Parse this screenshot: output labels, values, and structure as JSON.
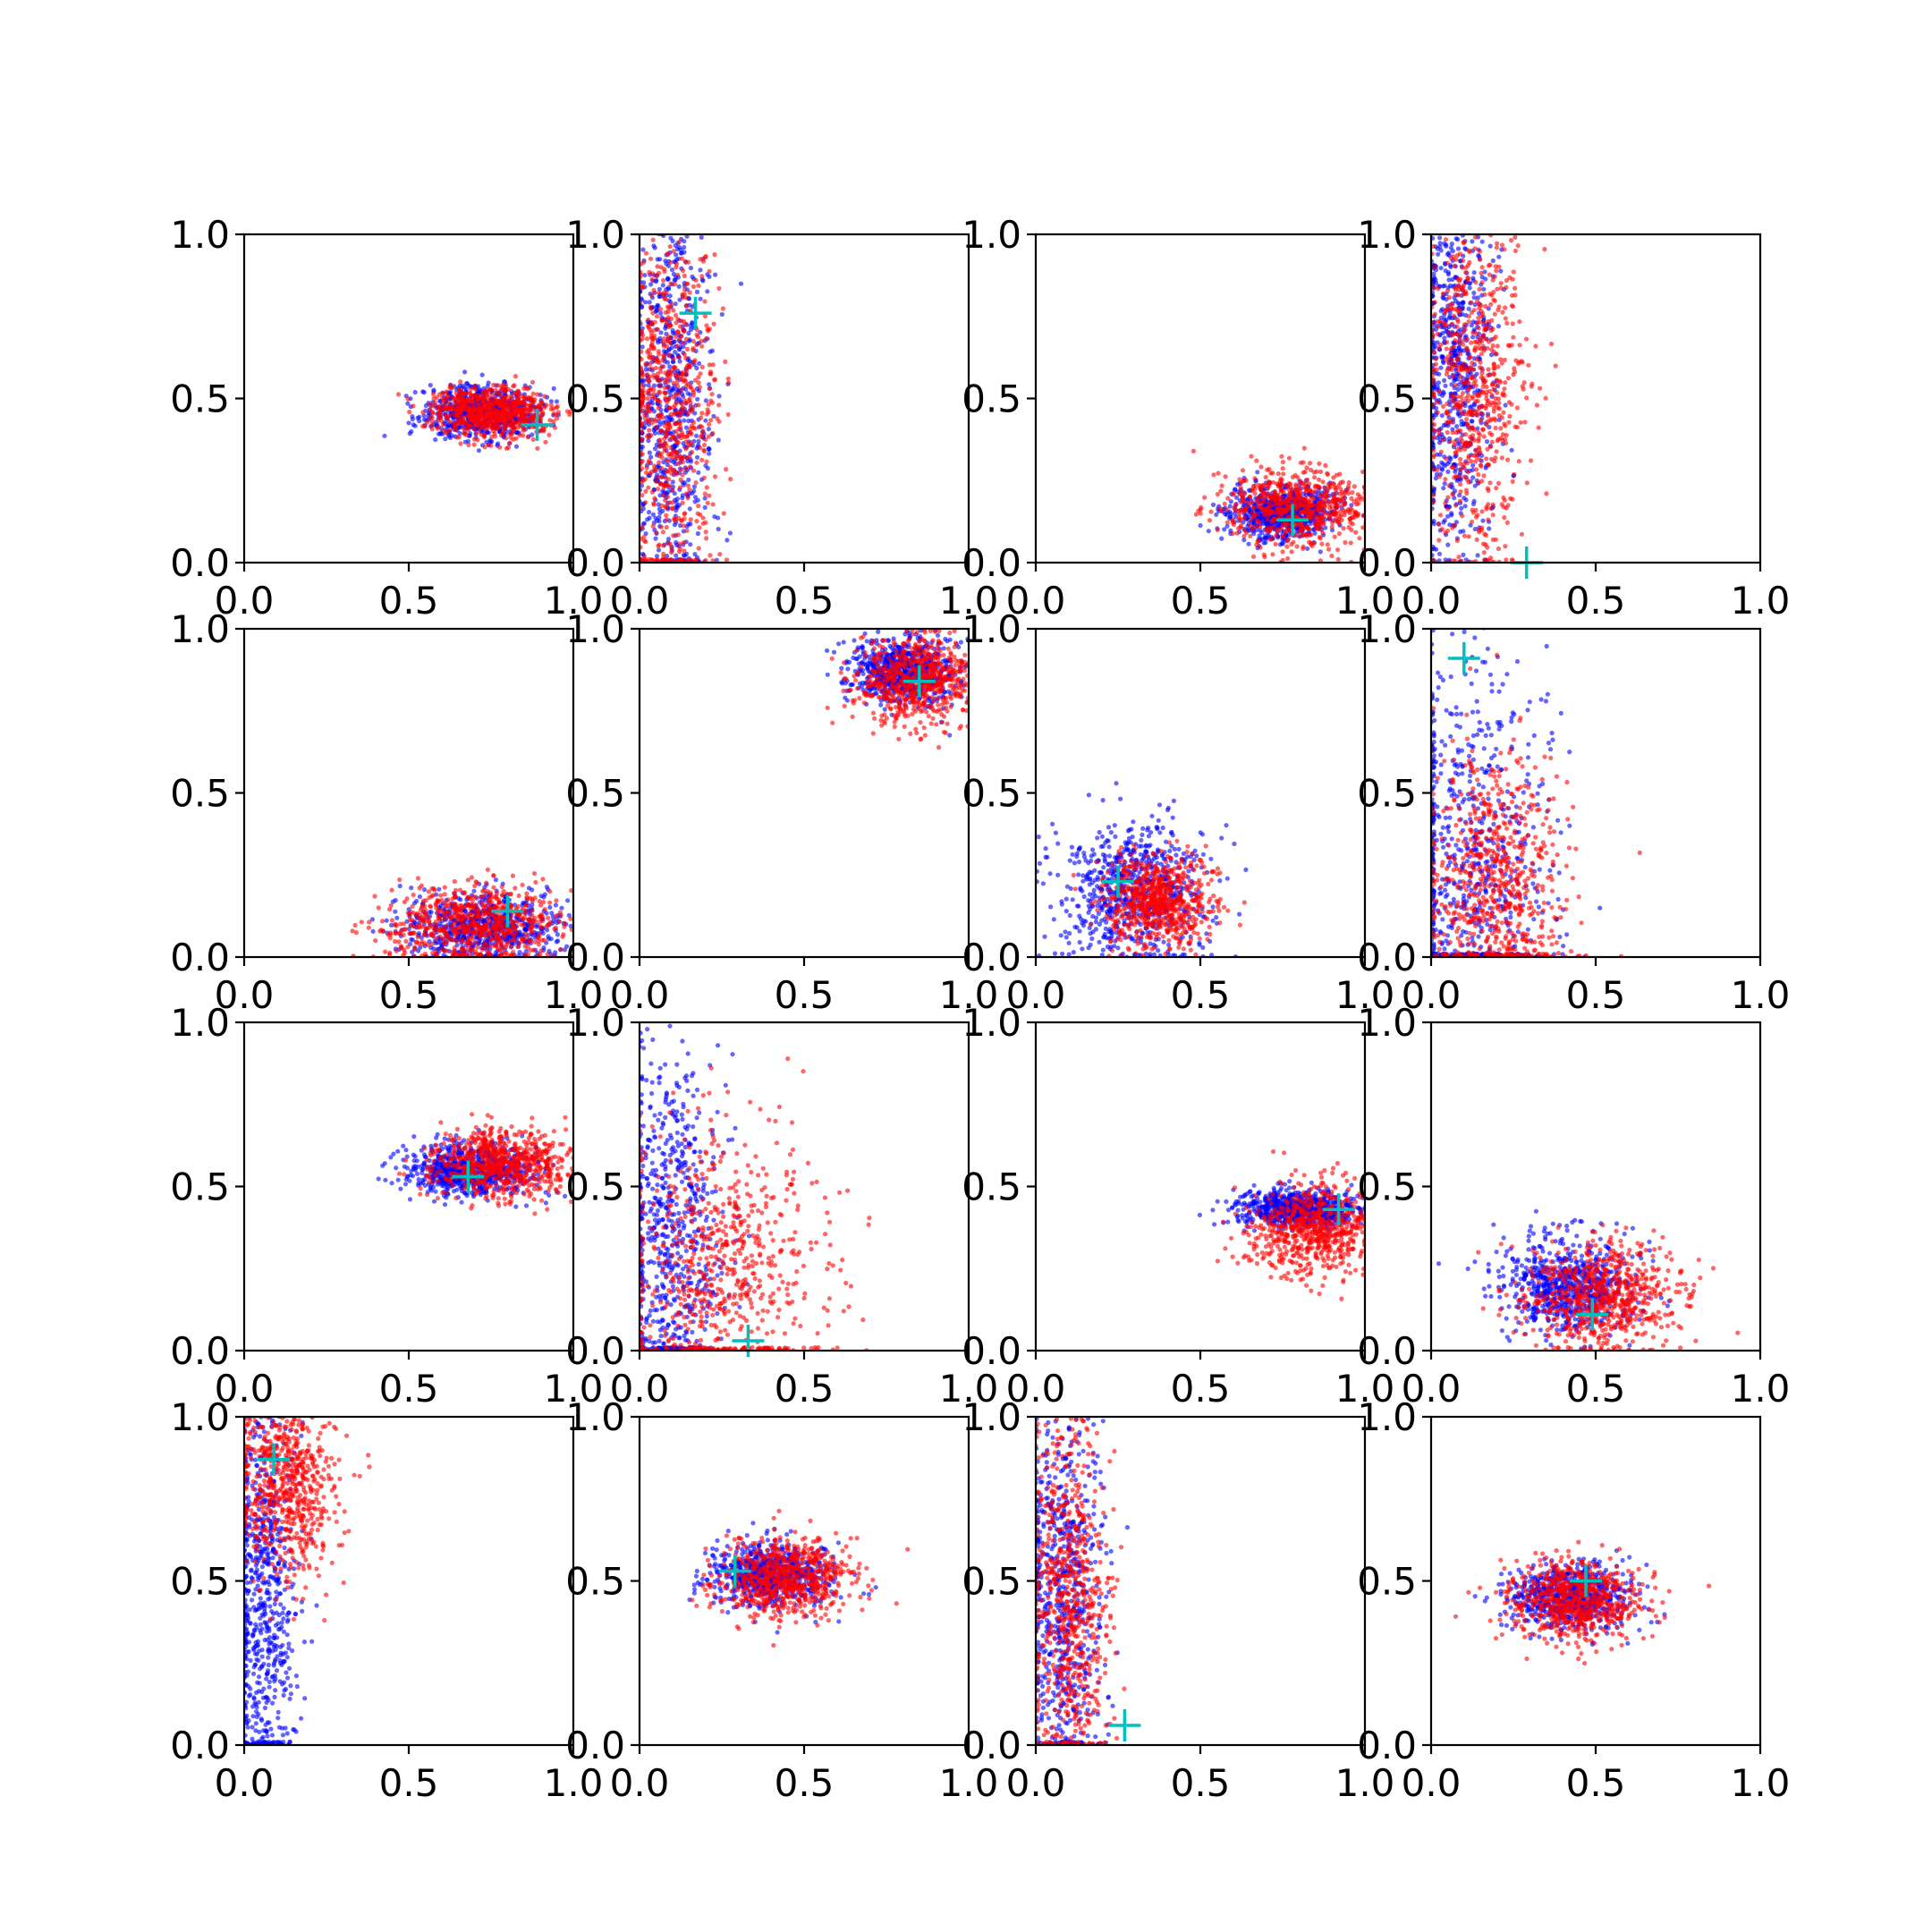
{
  "figure": {
    "colors": {
      "series_a": "#0000ff",
      "series_b": "#ff0000",
      "marker": "#00bfbf",
      "axes": "#000000",
      "background": "#ffffff"
    }
  },
  "chart_data": [
    {
      "type": "scatter",
      "xlim": [
        0,
        1
      ],
      "ylim": [
        0,
        1
      ],
      "xticks": [
        "0.0",
        "0.5",
        "1.0"
      ],
      "yticks": [
        "0.0",
        "0.5",
        "1.0"
      ],
      "grid": false,
      "series": [
        {
          "color": "#0000ff",
          "cluster": {
            "cx": 0.72,
            "cy": 0.46,
            "sx": 0.09,
            "sy": 0.04
          }
        },
        {
          "color": "#ff0000",
          "cluster": {
            "cx": 0.75,
            "cy": 0.46,
            "sx": 0.09,
            "sy": 0.04
          }
        }
      ],
      "marker": {
        "symbol": "+",
        "x": 0.89,
        "y": 0.42
      }
    },
    {
      "type": "scatter",
      "xlim": [
        0,
        1
      ],
      "ylim": [
        0,
        1
      ],
      "xticks": [
        "0.0",
        "0.5",
        "1.0"
      ],
      "yticks": [
        "0.0",
        "0.5",
        "1.0"
      ],
      "grid": false,
      "series": [
        {
          "color": "#0000ff",
          "cluster": {
            "cx": 0.1,
            "cy": 0.5,
            "sx": 0.06,
            "sy": 0.3
          }
        },
        {
          "color": "#ff0000",
          "cluster": {
            "cx": 0.1,
            "cy": 0.45,
            "sx": 0.07,
            "sy": 0.3
          }
        }
      ],
      "marker": {
        "symbol": "+",
        "x": 0.17,
        "y": 0.76
      }
    },
    {
      "type": "scatter",
      "xlim": [
        0,
        1
      ],
      "ylim": [
        0,
        1
      ],
      "xticks": [
        "0.0",
        "0.5",
        "1.0"
      ],
      "yticks": [
        "0.0",
        "0.5",
        "1.0"
      ],
      "grid": false,
      "series": [
        {
          "color": "#0000ff",
          "cluster": {
            "cx": 0.75,
            "cy": 0.15,
            "sx": 0.08,
            "sy": 0.04
          }
        },
        {
          "color": "#ff0000",
          "cluster": {
            "cx": 0.8,
            "cy": 0.17,
            "sx": 0.12,
            "sy": 0.06
          }
        }
      ],
      "marker": {
        "symbol": "+",
        "x": 0.78,
        "y": 0.13
      }
    },
    {
      "type": "scatter",
      "xlim": [
        0,
        1
      ],
      "ylim": [
        0,
        1
      ],
      "xticks": [
        "0.0",
        "0.5",
        "1.0"
      ],
      "yticks": [
        "0.0",
        "0.5",
        "1.0"
      ],
      "grid": false,
      "series": [
        {
          "color": "#0000ff",
          "cluster": {
            "cx": 0.07,
            "cy": 0.6,
            "sx": 0.06,
            "sy": 0.28
          }
        },
        {
          "color": "#ff0000",
          "cluster": {
            "cx": 0.13,
            "cy": 0.55,
            "sx": 0.08,
            "sy": 0.28
          }
        }
      ],
      "marker": {
        "symbol": "+",
        "x": 0.29,
        "y": 0.0
      }
    },
    {
      "type": "scatter",
      "xlim": [
        0,
        1
      ],
      "ylim": [
        0,
        1
      ],
      "xticks": [
        "0.0",
        "0.5",
        "1.0"
      ],
      "yticks": [
        "0.0",
        "0.5",
        "1.0"
      ],
      "grid": false,
      "series": [
        {
          "color": "#0000ff",
          "cluster": {
            "cx": 0.72,
            "cy": 0.09,
            "sx": 0.12,
            "sy": 0.05
          }
        },
        {
          "color": "#ff0000",
          "cluster": {
            "cx": 0.7,
            "cy": 0.1,
            "sx": 0.14,
            "sy": 0.06
          }
        }
      ],
      "marker": {
        "symbol": "+",
        "x": 0.8,
        "y": 0.14
      }
    },
    {
      "type": "scatter",
      "xlim": [
        0,
        1
      ],
      "ylim": [
        0,
        1
      ],
      "xticks": [
        "0.0",
        "0.5",
        "1.0"
      ],
      "yticks": [
        "0.0",
        "0.5",
        "1.0"
      ],
      "grid": false,
      "series": [
        {
          "color": "#0000ff",
          "cluster": {
            "cx": 0.8,
            "cy": 0.87,
            "sx": 0.08,
            "sy": 0.05
          }
        },
        {
          "color": "#ff0000",
          "cluster": {
            "cx": 0.85,
            "cy": 0.85,
            "sx": 0.1,
            "sy": 0.07
          }
        }
      ],
      "marker": {
        "symbol": "+",
        "x": 0.85,
        "y": 0.84
      }
    },
    {
      "type": "scatter",
      "xlim": [
        0,
        1
      ],
      "ylim": [
        0,
        1
      ],
      "xticks": [
        "0.0",
        "0.5",
        "1.0"
      ],
      "yticks": [
        "0.0",
        "0.5",
        "1.0"
      ],
      "grid": false,
      "series": [
        {
          "color": "#0000ff",
          "cluster": {
            "cx": 0.3,
            "cy": 0.2,
            "sx": 0.11,
            "sy": 0.11
          }
        },
        {
          "color": "#ff0000",
          "cluster": {
            "cx": 0.37,
            "cy": 0.17,
            "sx": 0.08,
            "sy": 0.07
          }
        }
      ],
      "marker": {
        "symbol": "+",
        "x": 0.25,
        "y": 0.23
      }
    },
    {
      "type": "scatter",
      "xlim": [
        0,
        1
      ],
      "ylim": [
        0,
        1
      ],
      "xticks": [
        "0.0",
        "0.5",
        "1.0"
      ],
      "yticks": [
        "0.0",
        "0.5",
        "1.0"
      ],
      "grid": false,
      "series": [
        {
          "color": "#0000ff",
          "cluster": {
            "cx": 0.12,
            "cy": 0.3,
            "sx": 0.12,
            "sy": 0.3
          }
        },
        {
          "color": "#ff0000",
          "cluster": {
            "cx": 0.2,
            "cy": 0.22,
            "sx": 0.1,
            "sy": 0.2
          }
        }
      ],
      "marker": {
        "symbol": "+",
        "x": 0.1,
        "y": 0.91
      }
    },
    {
      "type": "scatter",
      "xlim": [
        0,
        1
      ],
      "ylim": [
        0,
        1
      ],
      "xticks": [
        "0.0",
        "0.5",
        "1.0"
      ],
      "yticks": [
        "0.0",
        "0.5",
        "1.0"
      ],
      "grid": false,
      "series": [
        {
          "color": "#0000ff",
          "cluster": {
            "cx": 0.68,
            "cy": 0.55,
            "sx": 0.1,
            "sy": 0.04
          }
        },
        {
          "color": "#ff0000",
          "cluster": {
            "cx": 0.78,
            "cy": 0.57,
            "sx": 0.1,
            "sy": 0.05
          }
        }
      ],
      "marker": {
        "symbol": "+",
        "x": 0.68,
        "y": 0.53
      }
    },
    {
      "type": "scatter",
      "xlim": [
        0,
        1
      ],
      "ylim": [
        0,
        1
      ],
      "xticks": [
        "0.0",
        "0.5",
        "1.0"
      ],
      "yticks": [
        "0.0",
        "0.5",
        "1.0"
      ],
      "grid": false,
      "series": [
        {
          "color": "#0000ff",
          "cluster": {
            "cx": 0.1,
            "cy": 0.3,
            "sx": 0.08,
            "sy": 0.3
          }
        },
        {
          "color": "#ff0000",
          "cluster": {
            "cx": 0.25,
            "cy": 0.25,
            "sx": 0.15,
            "sy": 0.22
          }
        }
      ],
      "marker": {
        "symbol": "+",
        "x": 0.33,
        "y": 0.03
      }
    },
    {
      "type": "scatter",
      "xlim": [
        0,
        1
      ],
      "ylim": [
        0,
        1
      ],
      "xticks": [
        "0.0",
        "0.5",
        "1.0"
      ],
      "yticks": [
        "0.0",
        "0.5",
        "1.0"
      ],
      "grid": false,
      "series": [
        {
          "color": "#0000ff",
          "cluster": {
            "cx": 0.8,
            "cy": 0.43,
            "sx": 0.1,
            "sy": 0.03
          }
        },
        {
          "color": "#ff0000",
          "cluster": {
            "cx": 0.85,
            "cy": 0.37,
            "sx": 0.1,
            "sy": 0.07
          }
        }
      ],
      "marker": {
        "symbol": "+",
        "x": 0.92,
        "y": 0.43
      }
    },
    {
      "type": "scatter",
      "xlim": [
        0,
        1
      ],
      "ylim": [
        0,
        1
      ],
      "xticks": [
        "0.0",
        "0.5",
        "1.0"
      ],
      "yticks": [
        "0.0",
        "0.5",
        "1.0"
      ],
      "grid": false,
      "series": [
        {
          "color": "#0000ff",
          "cluster": {
            "cx": 0.42,
            "cy": 0.2,
            "sx": 0.1,
            "sy": 0.07
          }
        },
        {
          "color": "#ff0000",
          "cluster": {
            "cx": 0.52,
            "cy": 0.17,
            "sx": 0.12,
            "sy": 0.08
          }
        }
      ],
      "marker": {
        "symbol": "+",
        "x": 0.49,
        "y": 0.11
      }
    },
    {
      "type": "scatter",
      "xlim": [
        0,
        1
      ],
      "ylim": [
        0,
        1
      ],
      "xticks": [
        "0.0",
        "0.5",
        "1.0"
      ],
      "yticks": [
        "0.0",
        "0.5",
        "1.0"
      ],
      "grid": false,
      "series": [
        {
          "color": "#0000ff",
          "cluster": {
            "cx": 0.06,
            "cy": 0.45,
            "sx": 0.05,
            "sy": 0.32
          }
        },
        {
          "color": "#ff0000",
          "cluster": {
            "cx": 0.13,
            "cy": 0.8,
            "sx": 0.08,
            "sy": 0.14
          }
        }
      ],
      "marker": {
        "symbol": "+",
        "x": 0.09,
        "y": 0.87
      }
    },
    {
      "type": "scatter",
      "xlim": [
        0,
        1
      ],
      "ylim": [
        0,
        1
      ],
      "xticks": [
        "0.0",
        "0.5",
        "1.0"
      ],
      "yticks": [
        "0.0",
        "0.5",
        "1.0"
      ],
      "grid": false,
      "series": [
        {
          "color": "#0000ff",
          "cluster": {
            "cx": 0.4,
            "cy": 0.52,
            "sx": 0.09,
            "sy": 0.05
          }
        },
        {
          "color": "#ff0000",
          "cluster": {
            "cx": 0.45,
            "cy": 0.51,
            "sx": 0.1,
            "sy": 0.06
          }
        }
      ],
      "marker": {
        "symbol": "+",
        "x": 0.29,
        "y": 0.53
      }
    },
    {
      "type": "scatter",
      "xlim": [
        0,
        1
      ],
      "ylim": [
        0,
        1
      ],
      "xticks": [
        "0.0",
        "0.5",
        "1.0"
      ],
      "yticks": [
        "0.0",
        "0.5",
        "1.0"
      ],
      "grid": false,
      "series": [
        {
          "color": "#0000ff",
          "cluster": {
            "cx": 0.08,
            "cy": 0.45,
            "sx": 0.06,
            "sy": 0.3
          }
        },
        {
          "color": "#ff0000",
          "cluster": {
            "cx": 0.1,
            "cy": 0.45,
            "sx": 0.06,
            "sy": 0.3
          }
        }
      ],
      "marker": {
        "symbol": "+",
        "x": 0.27,
        "y": 0.06
      }
    },
    {
      "type": "scatter",
      "xlim": [
        0,
        1
      ],
      "ylim": [
        0,
        1
      ],
      "xticks": [
        "0.0",
        "0.5",
        "1.0"
      ],
      "yticks": [
        "0.0",
        "0.5",
        "1.0"
      ],
      "grid": false,
      "series": [
        {
          "color": "#0000ff",
          "cluster": {
            "cx": 0.42,
            "cy": 0.45,
            "sx": 0.09,
            "sy": 0.05
          }
        },
        {
          "color": "#ff0000",
          "cluster": {
            "cx": 0.44,
            "cy": 0.44,
            "sx": 0.1,
            "sy": 0.06
          }
        }
      ],
      "marker": {
        "symbol": "+",
        "x": 0.47,
        "y": 0.5
      }
    }
  ]
}
